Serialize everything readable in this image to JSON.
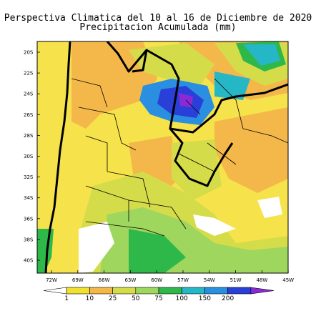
{
  "title": "Perspectiva Climatica del 10 al 16 de Diciembre de 2020",
  "subtitle": "Precipitacion Acumulada (mm)",
  "map": {
    "lat_labels": [
      "20S",
      "22S",
      "24S",
      "26S",
      "28S",
      "30S",
      "32S",
      "34S",
      "36S",
      "38S",
      "40S"
    ],
    "lon_labels": [
      "72W",
      "69W",
      "66W",
      "63W",
      "60W",
      "57W",
      "54W",
      "51W",
      "48W",
      "45W"
    ],
    "land_color": "#ffffff",
    "ocean_color": "#ffffff"
  },
  "colorbar": {
    "labels": [
      "1",
      "10",
      "25",
      "50",
      "75",
      "100",
      "150",
      "200"
    ],
    "colors": [
      "#ffffff",
      "#f2e030",
      "#f4b84a",
      "#d5dc4a",
      "#9fd65e",
      "#2fb84a",
      "#25b7c6",
      "#2a8fe0",
      "#2a3fd8",
      "#8a2ad6"
    ]
  }
}
